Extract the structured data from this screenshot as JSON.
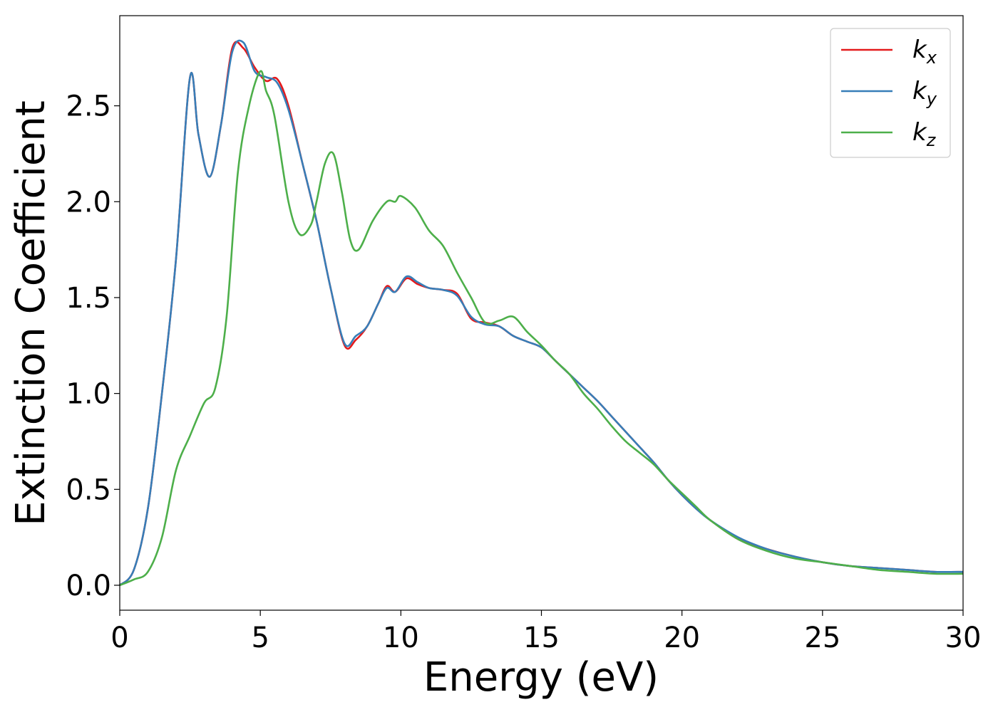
{
  "chart_data": {
    "type": "line",
    "title": "",
    "xlabel": "Energy (eV)",
    "ylabel": "Extinction Coefficient",
    "xlim": [
      0,
      30
    ],
    "ylim": [
      -0.13,
      2.97
    ],
    "xticks": [
      0,
      5,
      10,
      15,
      20,
      25,
      30
    ],
    "xtick_labels": [
      "0",
      "5",
      "10",
      "15",
      "20",
      "25",
      "30"
    ],
    "yticks": [
      0.0,
      0.5,
      1.0,
      1.5,
      2.0,
      2.5
    ],
    "ytick_labels": [
      "0.0",
      "0.5",
      "1.0",
      "1.5",
      "2.0",
      "2.5"
    ],
    "grid": false,
    "legend_position": "top-right",
    "series": [
      {
        "name": "k_x",
        "label_base": "k",
        "label_sub": "x",
        "color": "#e41a1c",
        "x": [
          0,
          0.5,
          1.0,
          1.5,
          2.0,
          2.5,
          2.8,
          3.2,
          3.6,
          4.0,
          4.4,
          4.8,
          5.2,
          5.6,
          6.0,
          6.5,
          7.0,
          7.5,
          8.0,
          8.4,
          8.8,
          9.2,
          9.5,
          9.8,
          10.2,
          10.6,
          11.0,
          11.5,
          12.0,
          12.5,
          13.0,
          13.5,
          14.0,
          14.5,
          15.0,
          15.5,
          16.0,
          16.5,
          17.0,
          17.5,
          18.0,
          18.5,
          19.0,
          19.5,
          20.0,
          20.5,
          21.0,
          22.0,
          23.0,
          24.0,
          25.0,
          26.0,
          27.0,
          28.0,
          29.0,
          30.0
        ],
        "y": [
          0.0,
          0.08,
          0.4,
          1.0,
          1.7,
          2.65,
          2.35,
          2.13,
          2.4,
          2.8,
          2.8,
          2.7,
          2.63,
          2.64,
          2.5,
          2.2,
          1.9,
          1.55,
          1.25,
          1.28,
          1.35,
          1.47,
          1.56,
          1.53,
          1.6,
          1.57,
          1.55,
          1.54,
          1.52,
          1.39,
          1.37,
          1.35,
          1.3,
          1.27,
          1.24,
          1.17,
          1.1,
          1.03,
          0.96,
          0.88,
          0.8,
          0.72,
          0.64,
          0.55,
          0.47,
          0.4,
          0.34,
          0.24,
          0.19,
          0.15,
          0.12,
          0.1,
          0.09,
          0.08,
          0.07,
          0.07
        ]
      },
      {
        "name": "k_y",
        "label_base": "k",
        "label_sub": "y",
        "color": "#377eb8",
        "x": [
          0,
          0.5,
          1.0,
          1.5,
          2.0,
          2.5,
          2.8,
          3.2,
          3.6,
          4.0,
          4.4,
          4.8,
          5.2,
          5.6,
          6.0,
          6.5,
          7.0,
          7.5,
          8.0,
          8.4,
          8.8,
          9.2,
          9.5,
          9.8,
          10.2,
          10.6,
          11.0,
          11.5,
          12.0,
          12.5,
          13.0,
          13.5,
          14.0,
          14.5,
          15.0,
          15.5,
          16.0,
          16.5,
          17.0,
          17.5,
          18.0,
          18.5,
          19.0,
          19.5,
          20.0,
          20.5,
          21.0,
          22.0,
          23.0,
          24.0,
          25.0,
          26.0,
          27.0,
          28.0,
          29.0,
          30.0
        ],
        "y": [
          0.0,
          0.08,
          0.4,
          1.0,
          1.7,
          2.65,
          2.35,
          2.13,
          2.4,
          2.78,
          2.83,
          2.68,
          2.65,
          2.62,
          2.48,
          2.2,
          1.9,
          1.55,
          1.26,
          1.3,
          1.35,
          1.47,
          1.55,
          1.53,
          1.61,
          1.58,
          1.55,
          1.54,
          1.51,
          1.4,
          1.36,
          1.35,
          1.3,
          1.27,
          1.24,
          1.17,
          1.1,
          1.03,
          0.96,
          0.88,
          0.8,
          0.72,
          0.64,
          0.55,
          0.47,
          0.4,
          0.34,
          0.25,
          0.19,
          0.15,
          0.12,
          0.1,
          0.09,
          0.08,
          0.07,
          0.07
        ]
      },
      {
        "name": "k_z",
        "label_base": "k",
        "label_sub": "z",
        "color": "#4daf4a",
        "x": [
          0,
          0.5,
          1.0,
          1.5,
          2.0,
          2.5,
          3.0,
          3.4,
          3.8,
          4.2,
          4.6,
          5.0,
          5.2,
          5.5,
          6.0,
          6.4,
          6.8,
          7.0,
          7.3,
          7.6,
          7.9,
          8.2,
          8.5,
          9.0,
          9.5,
          9.8,
          10.0,
          10.5,
          11.0,
          11.5,
          12.0,
          12.5,
          13.0,
          13.5,
          14.0,
          14.5,
          15.0,
          15.5,
          16.0,
          16.5,
          17.0,
          17.5,
          18.0,
          18.5,
          19.0,
          19.5,
          20.0,
          20.5,
          21.0,
          22.0,
          23.0,
          24.0,
          25.0,
          26.0,
          27.0,
          28.0,
          29.0,
          30.0
        ],
        "y": [
          0.0,
          0.03,
          0.07,
          0.25,
          0.6,
          0.78,
          0.95,
          1.03,
          1.4,
          2.15,
          2.5,
          2.68,
          2.58,
          2.45,
          2.0,
          1.83,
          1.88,
          2.0,
          2.2,
          2.25,
          2.05,
          1.8,
          1.75,
          1.9,
          2.0,
          2.0,
          2.03,
          1.97,
          1.85,
          1.77,
          1.63,
          1.5,
          1.37,
          1.38,
          1.4,
          1.32,
          1.25,
          1.17,
          1.1,
          1.0,
          0.92,
          0.83,
          0.75,
          0.69,
          0.63,
          0.55,
          0.48,
          0.41,
          0.34,
          0.24,
          0.18,
          0.14,
          0.12,
          0.1,
          0.08,
          0.07,
          0.06,
          0.06
        ]
      }
    ]
  }
}
